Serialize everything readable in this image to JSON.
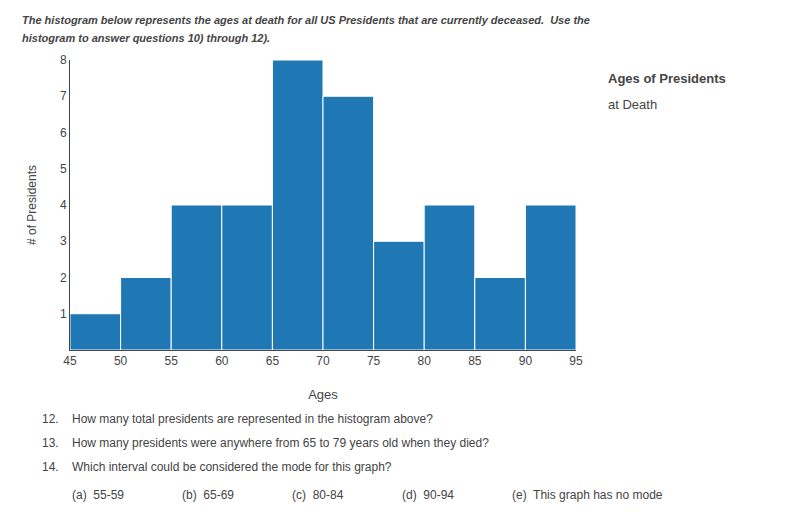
{
  "chart_data": {
    "type": "histogram",
    "title": "Ages of Presidents",
    "subtitle": "at Death",
    "x_label": "Ages",
    "y_label": "# of Presidents",
    "bins": [
      45,
      50,
      55,
      60,
      65,
      70,
      75,
      80,
      85,
      90,
      95
    ],
    "values": [
      1,
      2,
      4,
      4,
      8,
      7,
      3,
      4,
      2,
      4
    ],
    "xlim": [
      45,
      95
    ],
    "xticks": [
      45,
      50,
      55,
      60,
      65,
      70,
      75,
      80,
      85,
      90,
      95
    ],
    "ylim": [
      0,
      8
    ],
    "yticks": [
      1,
      2,
      3,
      4,
      5,
      6,
      7,
      8
    ],
    "grid": false,
    "annotations": [
      "The histogram below represents the ages at death for all US Presidents that are currently deceased.  Use the",
      "histogram to answer questions 10) through 12).",
      "12.",
      "How many total presidents are represented in the histogram above?",
      "13.",
      "How many presidents were anywhere from 65 to 79 years old when they died?",
      "14.",
      "Which interval could be considered the mode for this graph?",
      "(a)  55-59",
      "(b)  65-69",
      "(c)  80-84",
      "(d)  90-94",
      "(e)  This graph has no mode"
    ]
  }
}
